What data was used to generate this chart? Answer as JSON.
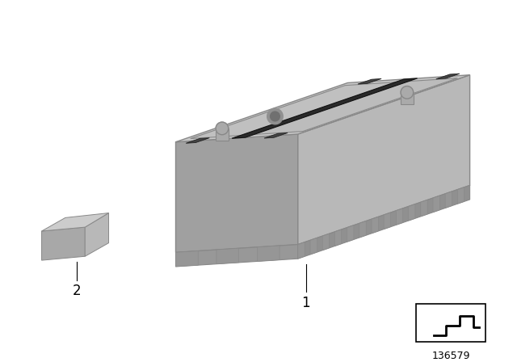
{
  "background_color": "#ffffff",
  "part_number": "136579",
  "body_color": "#b8b8b8",
  "top_color": "#c8c8c8",
  "right_color": "#a8a8a8",
  "dark_gray": "#888888",
  "darker_gray": "#606060",
  "black": "#222222"
}
